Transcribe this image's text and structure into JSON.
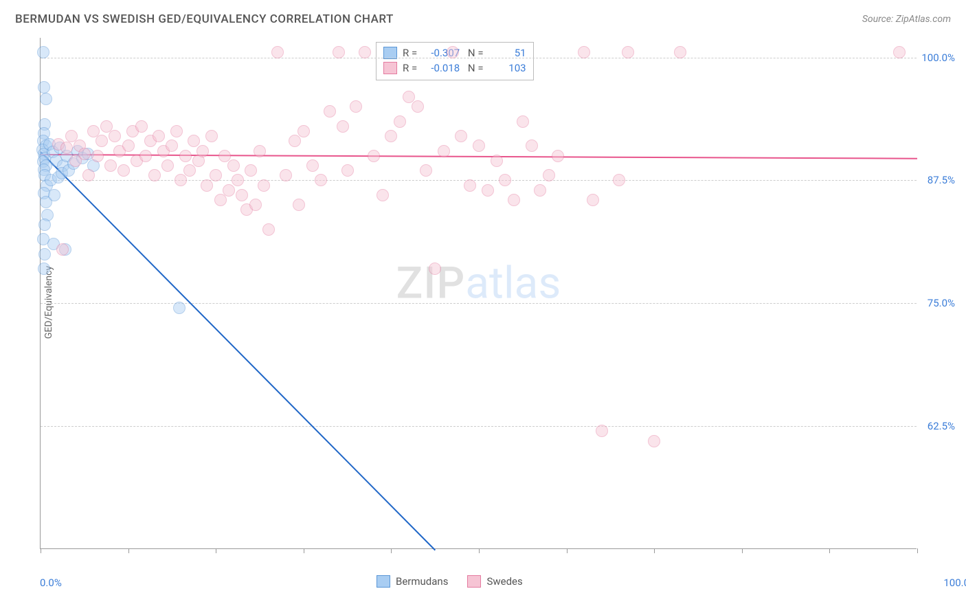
{
  "header": {
    "title": "BERMUDAN VS SWEDISH GED/EQUIVALENCY CORRELATION CHART",
    "source": "Source: ZipAtlas.com"
  },
  "chart": {
    "type": "scatter",
    "y_axis_title": "GED/Equivalency",
    "xlim": [
      0,
      100
    ],
    "ylim": [
      50,
      102
    ],
    "x_label_min": "0.0%",
    "x_label_max": "100.0%",
    "y_gridlines": [
      62.5,
      75.0,
      87.5,
      100.0
    ],
    "y_tick_labels": [
      "62.5%",
      "75.0%",
      "87.5%",
      "100.0%"
    ],
    "x_ticks": [
      0,
      10,
      20,
      30,
      40,
      50,
      60,
      70,
      80,
      90,
      100
    ],
    "background_color": "#ffffff",
    "grid_color": "#cccccc",
    "axis_color": "#999999",
    "tick_label_color": "#3b7dd8",
    "marker_radius": 9,
    "marker_opacity": 0.45,
    "series": [
      {
        "name": "Bermudans",
        "color_fill": "#a9cdf2",
        "color_stroke": "#5a96d6",
        "R": "-0.307",
        "N": "51",
        "trend": {
          "x1": 0,
          "y1": 90.5,
          "x2": 45,
          "y2": 50,
          "color": "#1f66c7",
          "dash_continue": true
        },
        "points": [
          [
            0.3,
            100.5
          ],
          [
            0.4,
            97
          ],
          [
            0.6,
            95.8
          ],
          [
            0.5,
            93.2
          ],
          [
            0.4,
            92.3
          ],
          [
            0.3,
            91.5
          ],
          [
            0.6,
            91.0
          ],
          [
            0.2,
            90.6
          ],
          [
            0.4,
            90.2
          ],
          [
            0.5,
            89.8
          ],
          [
            0.3,
            89.4
          ],
          [
            0.6,
            89.0
          ],
          [
            0.4,
            88.6
          ],
          [
            1.0,
            91.2
          ],
          [
            1.4,
            90.4
          ],
          [
            1.8,
            89.5
          ],
          [
            2.2,
            90.8
          ],
          [
            2.6,
            89.0
          ],
          [
            3.0,
            90.0
          ],
          [
            0.5,
            88.0
          ],
          [
            0.7,
            87.0
          ],
          [
            0.4,
            86.2
          ],
          [
            0.6,
            85.3
          ],
          [
            0.8,
            84.0
          ],
          [
            0.5,
            83.0
          ],
          [
            1.2,
            87.5
          ],
          [
            1.6,
            86.0
          ],
          [
            2.0,
            87.8
          ],
          [
            2.4,
            88.2
          ],
          [
            3.2,
            88.5
          ],
          [
            3.8,
            89.2
          ],
          [
            0.3,
            81.5
          ],
          [
            0.5,
            80.0
          ],
          [
            0.4,
            78.5
          ],
          [
            1.5,
            81.0
          ],
          [
            2.8,
            80.5
          ],
          [
            4.2,
            90.5
          ],
          [
            4.8,
            89.8
          ],
          [
            5.4,
            90.2
          ],
          [
            6.0,
            89.0
          ],
          [
            15.8,
            74.5
          ]
        ]
      },
      {
        "name": "Swedes",
        "color_fill": "#f6c4d4",
        "color_stroke": "#e47ba0",
        "R": "-0.018",
        "N": "103",
        "trend": {
          "x1": 0,
          "y1": 90.2,
          "x2": 100,
          "y2": 89.8,
          "color": "#e8558c",
          "dash_continue": false
        },
        "points": [
          [
            2,
            91.2
          ],
          [
            2.5,
            80.5
          ],
          [
            3,
            90.8
          ],
          [
            3.5,
            92.0
          ],
          [
            4,
            89.5
          ],
          [
            4.5,
            91.0
          ],
          [
            5,
            90.2
          ],
          [
            5.5,
            88.0
          ],
          [
            6,
            92.5
          ],
          [
            6.5,
            90.0
          ],
          [
            7,
            91.5
          ],
          [
            7.5,
            93.0
          ],
          [
            8,
            89.0
          ],
          [
            8.5,
            92.0
          ],
          [
            9,
            90.5
          ],
          [
            9.5,
            88.5
          ],
          [
            10,
            91.0
          ],
          [
            10.5,
            92.5
          ],
          [
            11,
            89.5
          ],
          [
            11.5,
            93.0
          ],
          [
            12,
            90.0
          ],
          [
            12.5,
            91.5
          ],
          [
            13,
            88.0
          ],
          [
            13.5,
            92.0
          ],
          [
            14,
            90.5
          ],
          [
            14.5,
            89.0
          ],
          [
            15,
            91.0
          ],
          [
            15.5,
            92.5
          ],
          [
            16,
            87.5
          ],
          [
            16.5,
            90.0
          ],
          [
            17,
            88.5
          ],
          [
            17.5,
            91.5
          ],
          [
            18,
            89.5
          ],
          [
            18.5,
            90.5
          ],
          [
            19,
            87.0
          ],
          [
            19.5,
            92.0
          ],
          [
            20,
            88.0
          ],
          [
            20.5,
            85.5
          ],
          [
            21,
            90.0
          ],
          [
            21.5,
            86.5
          ],
          [
            22,
            89.0
          ],
          [
            22.5,
            87.5
          ],
          [
            23,
            86.0
          ],
          [
            23.5,
            84.5
          ],
          [
            24,
            88.5
          ],
          [
            24.5,
            85.0
          ],
          [
            25,
            90.5
          ],
          [
            25.5,
            87.0
          ],
          [
            26,
            82.5
          ],
          [
            27,
            100.5
          ],
          [
            28,
            88.0
          ],
          [
            29,
            91.5
          ],
          [
            29.5,
            85.0
          ],
          [
            30,
            92.5
          ],
          [
            31,
            89.0
          ],
          [
            32,
            87.5
          ],
          [
            33,
            94.5
          ],
          [
            34,
            100.5
          ],
          [
            34.5,
            93.0
          ],
          [
            35,
            88.5
          ],
          [
            36,
            95.0
          ],
          [
            37,
            100.5
          ],
          [
            38,
            90.0
          ],
          [
            39,
            86.0
          ],
          [
            40,
            92.0
          ],
          [
            41,
            93.5
          ],
          [
            42,
            96.0
          ],
          [
            43,
            95.0
          ],
          [
            44,
            88.5
          ],
          [
            45,
            78.5
          ],
          [
            46,
            90.5
          ],
          [
            47,
            100.5
          ],
          [
            48,
            92.0
          ],
          [
            49,
            87.0
          ],
          [
            50,
            91.0
          ],
          [
            51,
            86.5
          ],
          [
            52,
            89.5
          ],
          [
            53,
            87.5
          ],
          [
            54,
            85.5
          ],
          [
            55,
            93.5
          ],
          [
            56,
            91.0
          ],
          [
            57,
            86.5
          ],
          [
            58,
            88.0
          ],
          [
            59,
            90.0
          ],
          [
            62,
            100.5
          ],
          [
            63,
            85.5
          ],
          [
            64,
            62.0
          ],
          [
            66,
            87.5
          ],
          [
            67,
            100.5
          ],
          [
            70,
            61.0
          ],
          [
            73,
            100.5
          ],
          [
            98,
            100.5
          ]
        ]
      }
    ],
    "legend_bottom": [
      {
        "label": "Bermudans",
        "fill": "#a9cdf2",
        "stroke": "#5a96d6"
      },
      {
        "label": "Swedes",
        "fill": "#f6c4d4",
        "stroke": "#e47ba0"
      }
    ],
    "watermark": {
      "part1": "ZIP",
      "part2": "atlas"
    }
  }
}
